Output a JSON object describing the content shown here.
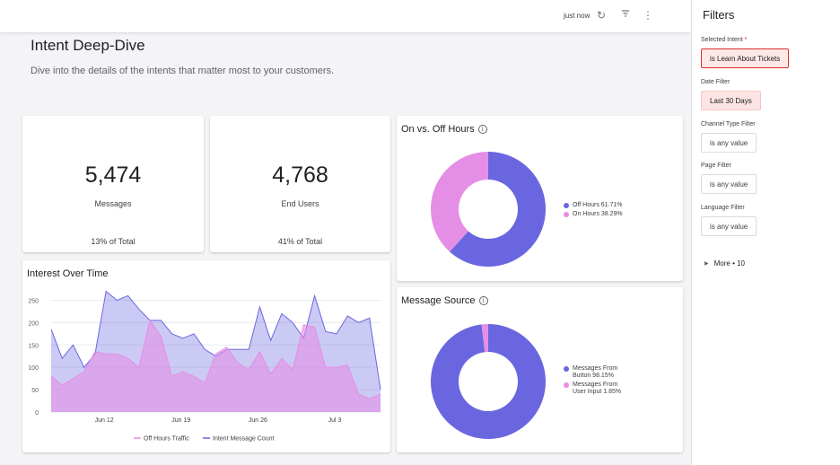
{
  "topbar": {
    "updated": "just now",
    "icons": [
      "refresh-icon",
      "filter-icon",
      "more-vert-icon"
    ]
  },
  "header": {
    "title": "Intent Deep-Dive",
    "subtitle": "Dive into the details of the intents that matter most to your customers."
  },
  "kpis": [
    {
      "value": "5,474",
      "label": "Messages",
      "footnote": "13% of Total"
    },
    {
      "value": "4,768",
      "label": "End Users",
      "footnote": "41% of Total"
    }
  ],
  "colors": {
    "primary": "#6a66e0",
    "secondary": "#e58ee6",
    "selected_border": "#d93025"
  },
  "on_off": {
    "title": "On vs. Off Hours",
    "chart_data": {
      "type": "pie",
      "title": "On vs. Off Hours",
      "slices": [
        {
          "label": "Off Hours 61.71%",
          "value": 61.71
        },
        {
          "label": "On Hours 38.29%",
          "value": 38.29
        }
      ],
      "legend": "right"
    }
  },
  "source": {
    "title": "Message Source",
    "chart_data": {
      "type": "pie",
      "title": "Message Source",
      "slices": [
        {
          "label": "Messages From Button 98.15%",
          "value": 98.15
        },
        {
          "label": "Messages From User Input 1.85%",
          "value": 1.85
        }
      ],
      "legend": "right"
    }
  },
  "interest": {
    "title": "Interest Over Time",
    "chart_data": {
      "type": "area",
      "title": "Interest Over Time",
      "x_ticks": [
        "Jun 12",
        "Jun 19",
        "Jun 26",
        "Jul 3"
      ],
      "y_ticks": [
        "0",
        "50",
        "100",
        "150",
        "200",
        "250"
      ],
      "ylim": [
        0,
        275
      ],
      "series": [
        {
          "name": "Intent Message Count",
          "values": [
            185,
            120,
            150,
            100,
            130,
            270,
            250,
            260,
            230,
            205,
            205,
            175,
            165,
            175,
            140,
            125,
            140,
            140,
            140,
            235,
            160,
            220,
            200,
            165,
            260,
            180,
            175,
            215,
            200,
            210,
            50
          ]
        },
        {
          "name": "Off Hours Traffic",
          "values": [
            80,
            60,
            75,
            90,
            135,
            130,
            130,
            120,
            100,
            205,
            170,
            80,
            90,
            80,
            65,
            130,
            145,
            110,
            95,
            135,
            85,
            120,
            95,
            195,
            190,
            100,
            100,
            105,
            40,
            30,
            40
          ]
        }
      ],
      "legend": "bottom"
    }
  },
  "filters": {
    "title": "Filters",
    "items": [
      {
        "label": "Selected Intent",
        "required": "*",
        "value": "is Learn About Tickets"
      },
      {
        "label": "Date Filter",
        "value": "Last 30 Days"
      },
      {
        "label": "Channel Type Filter",
        "value": "is any value"
      },
      {
        "label": "Page Filter",
        "value": "is any value"
      },
      {
        "label": "Language Filter",
        "value": "is any value"
      }
    ],
    "more": "More • 10"
  }
}
